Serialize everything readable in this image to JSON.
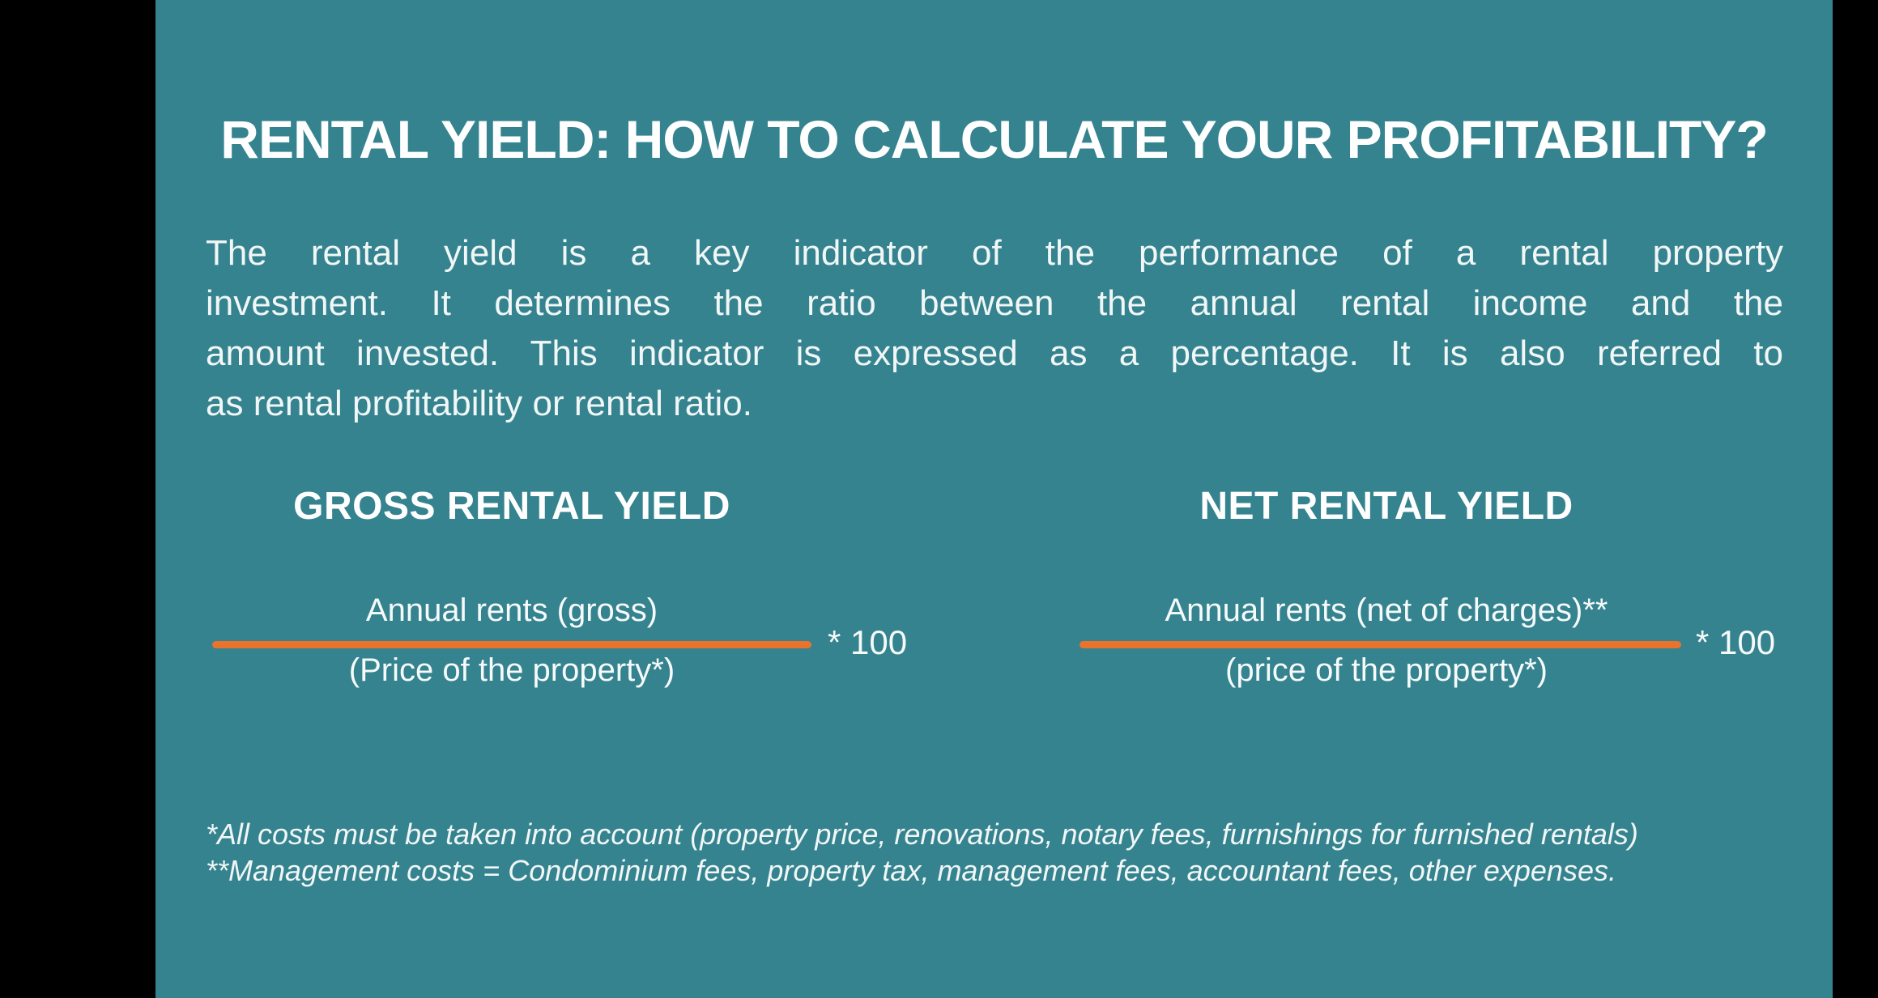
{
  "colors": {
    "background_bars": "#000000",
    "panel_teal": "#34838F",
    "divider_orange": "#E9722D",
    "title_text": "#FFFFFF",
    "body_text": "#F1F6F6"
  },
  "title": "RENTAL YIELD: HOW TO CALCULATE YOUR PROFITABILITY?",
  "intro": {
    "lines": [
      "The rental yield is a key indicator of the performance of a rental property",
      "investment. It determines the ratio between the annual rental income and the",
      "amount invested. This indicator is expressed as a percentage. It is also referred to",
      "as rental profitability or rental ratio."
    ]
  },
  "columns": [
    {
      "heading": "GROSS RENTAL YIELD",
      "numerator": "Annual rents (gross)",
      "denominator": "(Price of the property*)",
      "multiplier": "* 100"
    },
    {
      "heading": "NET RENTAL YIELD",
      "numerator": "Annual rents (net of charges)**",
      "denominator": "(price of the property*)",
      "multiplier": "* 100"
    }
  ],
  "footnotes": [
    "*All costs must be taken into account (property price, renovations, notary fees, furnishings for furnished rentals)",
    "**Management costs = Condominium fees, property tax, management fees, accountant fees, other expenses."
  ]
}
